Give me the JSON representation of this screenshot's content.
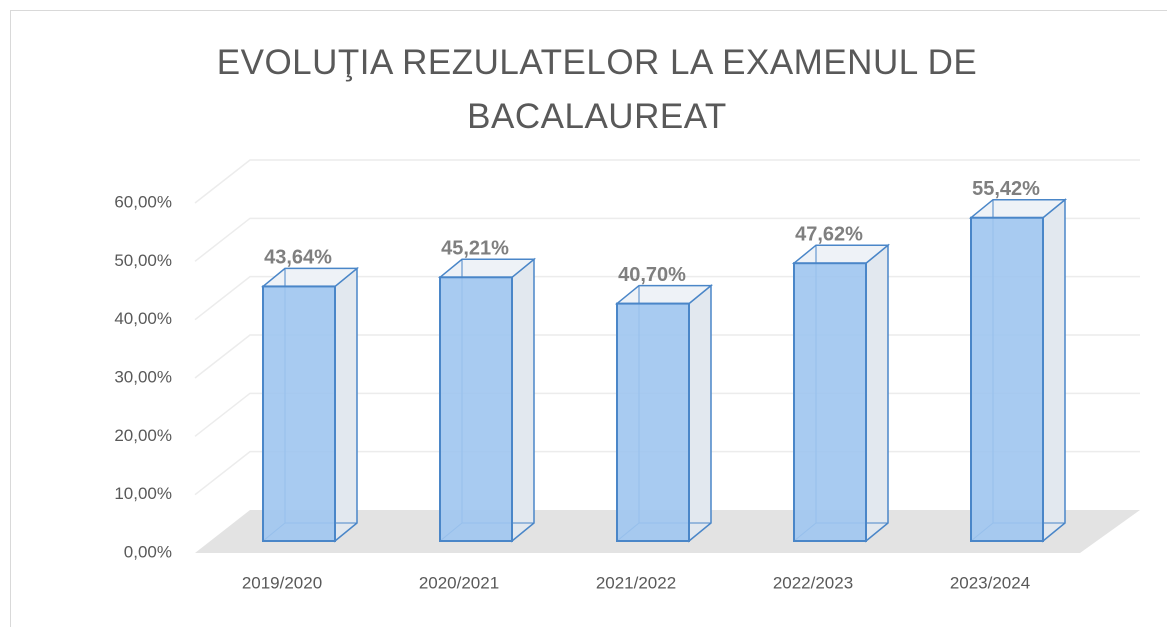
{
  "chart_data": {
    "type": "bar3d",
    "title": "EVOLUŢIA REZULATELOR LA EXAMENUL DE BACALAUREAT",
    "categories": [
      "2019/2020",
      "2020/2021",
      "2021/2022",
      "2022/2023",
      "2023/2024"
    ],
    "values": [
      43.64,
      45.21,
      40.7,
      47.62,
      55.42
    ],
    "value_labels": [
      "43,64%",
      "45,21%",
      "40,70%",
      "47,62%",
      "55,42%"
    ],
    "color": "#9ec5f0",
    "ylim": [
      0,
      60
    ],
    "yticks": [
      {
        "value": 0,
        "label": "0,00%"
      },
      {
        "value": 10,
        "label": "10,00%"
      },
      {
        "value": 20,
        "label": "20,00%"
      },
      {
        "value": 30,
        "label": "30,00%"
      },
      {
        "value": 40,
        "label": "40,00%"
      },
      {
        "value": 50,
        "label": "50,00%"
      },
      {
        "value": 60,
        "label": "60,00%"
      }
    ],
    "grid": true
  }
}
